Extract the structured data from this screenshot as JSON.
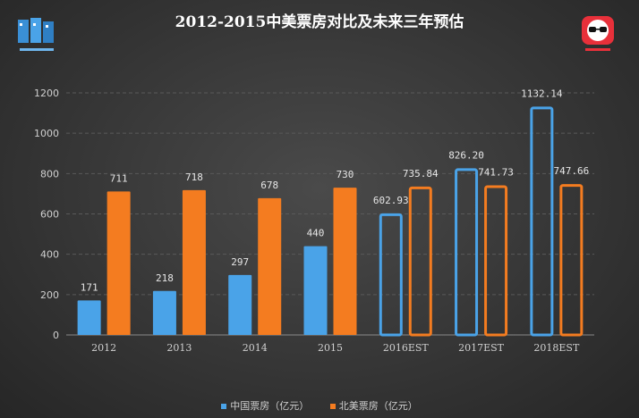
{
  "title": "2012-2015中美票房对比及未来三年预估",
  "colors": {
    "china": "#4aa3e8",
    "na": "#f47c20",
    "axis_text": "#d0d0d0",
    "grid": "#5a5a5a"
  },
  "chart_data": {
    "type": "bar",
    "title": "2012-2015中美票房对比及未来三年预估",
    "categories": [
      "2012",
      "2013",
      "2014",
      "2015",
      "2016EST",
      "2017EST",
      "2018EST"
    ],
    "series": [
      {
        "name": "中国票房（亿元）",
        "values": [
          171,
          218,
          297,
          440,
          602.93,
          826.2,
          1132.14
        ],
        "labels": [
          "171",
          "218",
          "297",
          "440",
          "602.93",
          "826.20",
          "1132.14"
        ]
      },
      {
        "name": "北美票房（亿元）",
        "values": [
          711,
          718,
          678,
          730,
          735.84,
          741.73,
          747.66
        ],
        "labels": [
          "711",
          "718",
          "678",
          "730",
          "735.84",
          "741.73",
          "747.66"
        ]
      }
    ],
    "estimated_categories": [
      "2016EST",
      "2017EST",
      "2018EST"
    ],
    "ylim": [
      0,
      1200
    ],
    "yticks": [
      "0",
      "200",
      "400",
      "600",
      "800",
      "1000",
      "1200"
    ],
    "grid": true,
    "legend_position": "bottom-center"
  },
  "legend": {
    "china": "中国票房（亿元）",
    "na": "北美票房（亿元）"
  }
}
